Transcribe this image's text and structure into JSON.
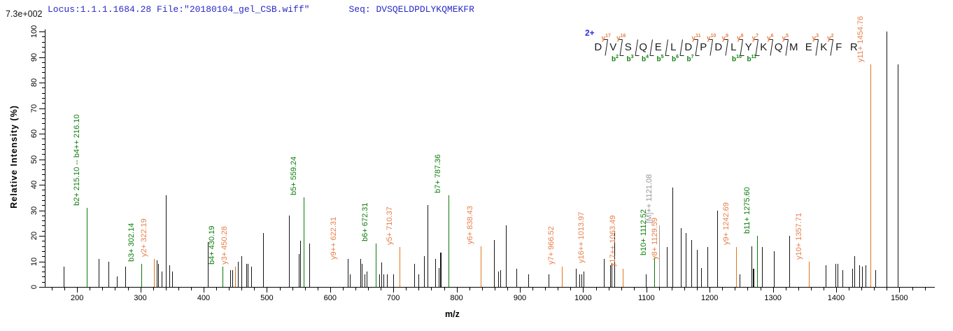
{
  "header": {
    "locus_file": "Locus:1.1.1.1684.28 File:\"20180104_gel_CSB.wiff\"",
    "seq": "Seq: DVSQELDPDLYKQMEKFR"
  },
  "peptide": {
    "charge": "2+",
    "residues": [
      "D",
      "V",
      "S",
      "Q",
      "E",
      "L",
      "D",
      "P",
      "D",
      "L",
      "Y",
      "K",
      "Q",
      "M",
      "E",
      "K",
      "F",
      "R"
    ],
    "marks": [
      {
        "before": 1,
        "y": "y17"
      },
      {
        "before": 2,
        "y": "y16",
        "b": "b2"
      },
      {
        "before": 3,
        "b": "b3"
      },
      {
        "before": 4,
        "b": "b4"
      },
      {
        "before": 5,
        "b": "b5"
      },
      {
        "before": 6,
        "b": "b6"
      },
      {
        "before": 7,
        "y": "y11",
        "b": "b7"
      },
      {
        "before": 8,
        "y": "y10"
      },
      {
        "before": 9,
        "y": "y9"
      },
      {
        "before": 10,
        "y": "y8",
        "b": "b10"
      },
      {
        "before": 11,
        "y": "y7",
        "b": "b11"
      },
      {
        "before": 12,
        "y": "y6"
      },
      {
        "before": 13,
        "y": "y5"
      },
      {
        "before": 15,
        "y": "y3"
      },
      {
        "before": 16,
        "y": "y2"
      }
    ]
  },
  "chart_data": {
    "type": "bar",
    "subtype": "ms2-fragmentation-spectrum",
    "max_label": "7.3e+002",
    "xlabel": "m/z",
    "ylabel": "Relative  Intensity (%)",
    "xlim": [
      150,
      1556
    ],
    "ylim": [
      0,
      100
    ],
    "x_ticks": [
      200,
      300,
      400,
      500,
      600,
      700,
      800,
      900,
      1000,
      1100,
      1200,
      1300,
      1400,
      1500
    ],
    "x_minor_step": 20,
    "y_ticks": [
      0,
      10,
      20,
      30,
      40,
      50,
      60,
      70,
      80,
      90,
      100
    ],
    "y_minor_step": 2,
    "grid": false,
    "colors": {
      "peak": "#151515",
      "b_line": "#0b7a0b",
      "b_label": "#0d7d0d",
      "y_line": "#e2761e",
      "y_dashed": "#d08a55",
      "y_label": "#e87f4a",
      "precursor": "#9a9a9a",
      "precursor_label": "#949494",
      "header_blue": "#2a2ac8"
    },
    "peaks": [
      {
        "mz": 179,
        "i": 8
      },
      {
        "mz": 216.1,
        "i": 31,
        "t": "b",
        "label": "b2+ 215.10 -- b4++ 216.10"
      },
      {
        "mz": 235,
        "i": 11
      },
      {
        "mz": 250,
        "i": 10
      },
      {
        "mz": 263,
        "i": 4
      },
      {
        "mz": 277,
        "i": 8
      },
      {
        "mz": 302.14,
        "i": 9,
        "t": "b",
        "label": "b3+ 302.14"
      },
      {
        "mz": 322.19,
        "i": 11,
        "t": "y",
        "label": "y2+ 322.19"
      },
      {
        "mz": 326,
        "i": 10.5
      },
      {
        "mz": 329,
        "i": 9
      },
      {
        "mz": 334,
        "i": 6
      },
      {
        "mz": 341,
        "i": 36
      },
      {
        "mz": 346,
        "i": 8.5
      },
      {
        "mz": 351,
        "i": 6
      },
      {
        "mz": 407,
        "i": 17.5
      },
      {
        "mz": 430.19,
        "i": 8,
        "t": "b",
        "label": "b4+ 430.19"
      },
      {
        "mz": 442,
        "i": 6.5
      },
      {
        "mz": 446,
        "i": 6.5
      },
      {
        "mz": 450.28,
        "i": 8,
        "t": "y",
        "label": "y3+ 450.28"
      },
      {
        "mz": 455,
        "i": 10
      },
      {
        "mz": 460,
        "i": 12
      },
      {
        "mz": 468,
        "i": 9
      },
      {
        "mz": 470.5,
        "i": 9
      },
      {
        "mz": 476,
        "i": 8
      },
      {
        "mz": 495,
        "i": 21
      },
      {
        "mz": 535,
        "i": 28
      },
      {
        "mz": 551,
        "i": 13
      },
      {
        "mz": 553.5,
        "i": 18
      },
      {
        "mz": 559.24,
        "i": 35,
        "t": "b",
        "label": "b5+ 559.24"
      },
      {
        "mz": 568,
        "i": 17
      },
      {
        "mz": 622.31,
        "i": 10,
        "t": "yd",
        "label": "y9++ 622.31"
      },
      {
        "mz": 628,
        "i": 11
      },
      {
        "mz": 632,
        "i": 5
      },
      {
        "mz": 648,
        "i": 11
      },
      {
        "mz": 650,
        "i": 9
      },
      {
        "mz": 655,
        "i": 5
      },
      {
        "mz": 658,
        "i": 6
      },
      {
        "mz": 672.31,
        "i": 17,
        "t": "b",
        "label": "b6+ 672.31"
      },
      {
        "mz": 678,
        "i": 5
      },
      {
        "mz": 682,
        "i": 9.5
      },
      {
        "mz": 685,
        "i": 5
      },
      {
        "mz": 690,
        "i": 5
      },
      {
        "mz": 700,
        "i": 5
      },
      {
        "mz": 710.37,
        "i": 15.5,
        "t": "y",
        "label": "y5+ 710.37"
      },
      {
        "mz": 733,
        "i": 9
      },
      {
        "mz": 740,
        "i": 5
      },
      {
        "mz": 749,
        "i": 12
      },
      {
        "mz": 754,
        "i": 32
      },
      {
        "mz": 767,
        "i": 11
      },
      {
        "mz": 772,
        "i": 7.5
      },
      {
        "mz": 775,
        "i": 13.5,
        "w": 2
      },
      {
        "mz": 787.36,
        "i": 36,
        "t": "b",
        "label": "b7+ 787.36"
      },
      {
        "mz": 838.43,
        "i": 16,
        "t": "y",
        "label": "y6+ 838.43"
      },
      {
        "mz": 860,
        "i": 18.5
      },
      {
        "mz": 866,
        "i": 6
      },
      {
        "mz": 869,
        "i": 6.5
      },
      {
        "mz": 878,
        "i": 24
      },
      {
        "mz": 895,
        "i": 7
      },
      {
        "mz": 914,
        "i": 5
      },
      {
        "mz": 946,
        "i": 5
      },
      {
        "mz": 966.52,
        "i": 8,
        "t": "y",
        "label": "y7+ 966.52"
      },
      {
        "mz": 989,
        "i": 7
      },
      {
        "mz": 994,
        "i": 5
      },
      {
        "mz": 998,
        "i": 5
      },
      {
        "mz": 1001,
        "i": 6
      },
      {
        "mz": 1013.97,
        "i": 8.5,
        "t": "yd",
        "label": "y16++ 1013.97"
      },
      {
        "mz": 1033,
        "i": 11
      },
      {
        "mz": 1043,
        "i": 8.5
      },
      {
        "mz": 1045,
        "i": 9
      },
      {
        "mz": 1050,
        "i": 22
      },
      {
        "mz": 1063.49,
        "i": 7,
        "t": "y",
        "label": "y17++ 1063.49"
      },
      {
        "mz": 1100,
        "i": 5
      },
      {
        "mz": 1112.52,
        "i": 11.5,
        "t": "b",
        "label": "b10+ 1112.52"
      },
      {
        "mz": 1121.08,
        "i": 24,
        "t": "M",
        "label": "[M]++ 1121.08"
      },
      {
        "mz": 1129.59,
        "i": 10,
        "t": "yd",
        "label": "y8+ 1129.59"
      },
      {
        "mz": 1133,
        "i": 15.5
      },
      {
        "mz": 1142,
        "i": 39
      },
      {
        "mz": 1155,
        "i": 23
      },
      {
        "mz": 1163,
        "i": 21
      },
      {
        "mz": 1171,
        "i": 18.5
      },
      {
        "mz": 1180,
        "i": 14.5
      },
      {
        "mz": 1187,
        "i": 7.5
      },
      {
        "mz": 1197,
        "i": 15.5
      },
      {
        "mz": 1213,
        "i": 30
      },
      {
        "mz": 1242.69,
        "i": 15.5,
        "t": "y",
        "label": "y9+ 1242.69"
      },
      {
        "mz": 1248,
        "i": 5
      },
      {
        "mz": 1267,
        "i": 16
      },
      {
        "mz": 1269.5,
        "i": 7,
        "w": 2
      },
      {
        "mz": 1275.6,
        "i": 20,
        "t": "b",
        "label": "b11+ 1275.60"
      },
      {
        "mz": 1283,
        "i": 15.5
      },
      {
        "mz": 1302,
        "i": 14
      },
      {
        "mz": 1326,
        "i": 20
      },
      {
        "mz": 1357.71,
        "i": 10,
        "t": "y",
        "label": "y10+ 1357.71"
      },
      {
        "mz": 1384,
        "i": 8.5
      },
      {
        "mz": 1399,
        "i": 9
      },
      {
        "mz": 1403,
        "i": 9
      },
      {
        "mz": 1410,
        "i": 6.5
      },
      {
        "mz": 1426,
        "i": 7
      },
      {
        "mz": 1429,
        "i": 12
      },
      {
        "mz": 1437,
        "i": 8.5
      },
      {
        "mz": 1442,
        "i": 8
      },
      {
        "mz": 1447,
        "i": 8.5
      },
      {
        "mz": 1454.76,
        "i": 87,
        "t": "y",
        "label": "y11+ 1454.76"
      },
      {
        "mz": 1462,
        "i": 6.5
      },
      {
        "mz": 1480,
        "i": 100
      },
      {
        "mz": 1498,
        "i": 87
      }
    ]
  }
}
